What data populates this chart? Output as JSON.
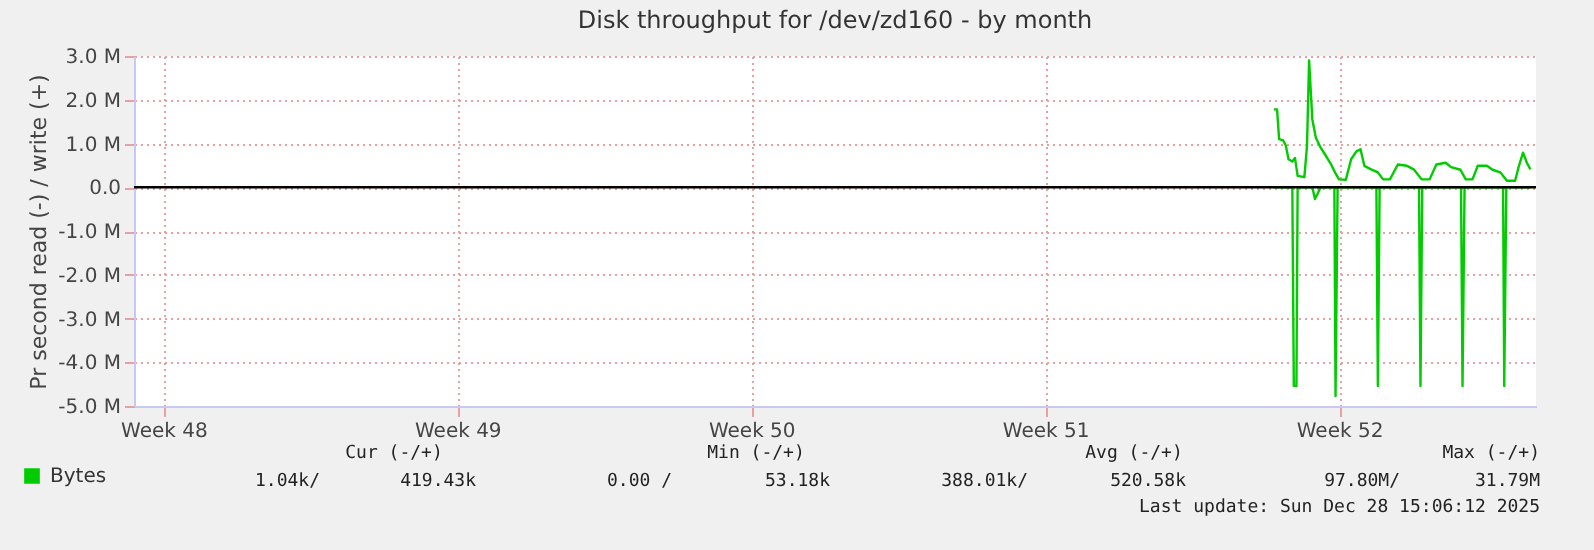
{
  "chart_data": {
    "type": "line",
    "title": "Disk throughput for /dev/zd160 - by month",
    "ylabel": "Pr second read (-) / write (+)",
    "xlim": [
      "2025-11-23T07:12",
      "2025-12-26T16:34"
    ],
    "xticks": [
      {
        "value": "2025-11-24",
        "label": "Week 48"
      },
      {
        "value": "2025-12-01",
        "label": "Week 49"
      },
      {
        "value": "2025-12-08",
        "label": "Week 50"
      },
      {
        "value": "2025-12-15",
        "label": "Week 51"
      },
      {
        "value": "2025-12-22",
        "label": "Week 52"
      }
    ],
    "ylim": [
      -5.0,
      3.0
    ],
    "yticks": [
      {
        "value": -5,
        "label": "-5.0 M"
      },
      {
        "value": -4,
        "label": "-4.0 M"
      },
      {
        "value": -3,
        "label": "-3.0 M"
      },
      {
        "value": -2,
        "label": "-2.0 M"
      },
      {
        "value": -1,
        "label": "-1.0 M"
      },
      {
        "value": 0,
        "label": "0.0"
      },
      {
        "value": 1,
        "label": "1.0 M"
      },
      {
        "value": 2,
        "label": "2.0 M"
      },
      {
        "value": 3,
        "label": "3.0 M"
      }
    ],
    "grid": true,
    "legend": "bottom left",
    "marker": "none",
    "line_style": "solid",
    "ref_lines": [
      {
        "axis": "y",
        "value": 0,
        "color": "#000000"
      }
    ],
    "series": [
      {
        "name": "Bytes",
        "color": "#00cc00",
        "x": [
          "2025-12-20T10:42",
          "2025-12-20T12:33",
          "2025-12-20T13:44",
          "2025-12-20T16:05",
          "2025-12-20T17:36",
          "2025-12-20T19:06",
          "2025-12-20T21:17",
          "2025-12-20T22:48",
          "2025-12-21T00:19",
          "2025-12-21T04:10",
          "2025-12-21T05:41",
          "2025-12-21T06:52",
          "2025-12-21T08:43",
          "2025-12-21T10:44",
          "2025-12-21T13:25",
          "2025-12-21T16:26",
          "2025-12-21T19:28",
          "2025-12-21T21:39",
          "2025-12-22T00:00",
          "2025-12-22T03:52",
          "2025-12-22T06:53",
          "2025-12-22T09:55",
          "2025-12-22T12:16",
          "2025-12-22T14:27",
          "2025-12-22T18:19",
          "2025-12-22T22:11",
          "2025-12-23T01:12",
          "2025-12-23T05:04",
          "2025-12-23T09:36",
          "2025-12-23T14:48",
          "2025-12-23T18:40",
          "2025-12-23T23:12",
          "2025-12-24T03:45",
          "2025-12-24T07:36",
          "2025-12-24T12:59",
          "2025-12-24T16:00",
          "2025-12-24T21:23",
          "2025-12-25T00:24",
          "2025-12-25T04:16",
          "2025-12-25T07:18",
          "2025-12-25T12:30",
          "2025-12-25T15:42",
          "2025-12-25T20:14",
          "2025-12-25T23:56",
          "2025-12-26T04:38",
          "2025-12-26T06:49",
          "2025-12-26T09:10",
          "2025-12-26T11:21",
          "2025-12-26T13:22"
        ],
        "values": [
          1.78,
          1.78,
          1.1,
          1.07,
          0.95,
          0.64,
          0.59,
          0.67,
          0.26,
          0.23,
          0.95,
          2.9,
          1.55,
          1.13,
          0.91,
          0.72,
          0.52,
          0.34,
          0.18,
          0.17,
          0.64,
          0.82,
          0.87,
          0.49,
          0.41,
          0.34,
          0.18,
          0.18,
          0.52,
          0.49,
          0.41,
          0.18,
          0.18,
          0.52,
          0.56,
          0.46,
          0.4,
          0.18,
          0.18,
          0.49,
          0.49,
          0.4,
          0.34,
          0.15,
          0.15,
          0.49,
          0.79,
          0.56,
          0.41
        ]
      },
      {
        "color": "#00cc00",
        "x": [
          "2025-12-20T10:42",
          "2025-12-20T21:17",
          "2025-12-20T22:08",
          "2025-12-20T23:38",
          "2025-12-21T00:19",
          "2025-12-21T08:43",
          "2025-12-21T10:13",
          "2025-12-21T11:44",
          "2025-12-21T13:25",
          "2025-12-21T21:19",
          "2025-12-21T21:59",
          "2025-12-21T23:10",
          "2025-12-22T21:20",
          "2025-12-22T22:11",
          "2025-12-22T23:11",
          "2025-12-23T21:42",
          "2025-12-23T22:32",
          "2025-12-23T23:33",
          "2025-12-24T21:43",
          "2025-12-24T22:34",
          "2025-12-24T23:44",
          "2025-12-25T21:45",
          "2025-12-25T22:25",
          "2025-12-25T23:36",
          "2025-12-26T13:22"
        ],
        "values": [
          0,
          0,
          -4.54,
          -4.54,
          0,
          0,
          -0.27,
          -0.15,
          0,
          0,
          -4.77,
          0,
          0,
          -4.54,
          0,
          0,
          -4.54,
          0,
          0,
          -4.54,
          0,
          0,
          -4.54,
          0,
          0
        ]
      }
    ],
    "annotations": [
      "Cur (-/+)",
      "Min (-/+)",
      "Avg (-/+)",
      "Max (-/+)",
      "1.04k/",
      "419.43k",
      "0.00 /",
      "53.18k",
      "388.01k/",
      "520.58k",
      "97.80M/",
      "31.79M",
      "Last update: Sun Dec 28 15:06:12 2025"
    ]
  }
}
